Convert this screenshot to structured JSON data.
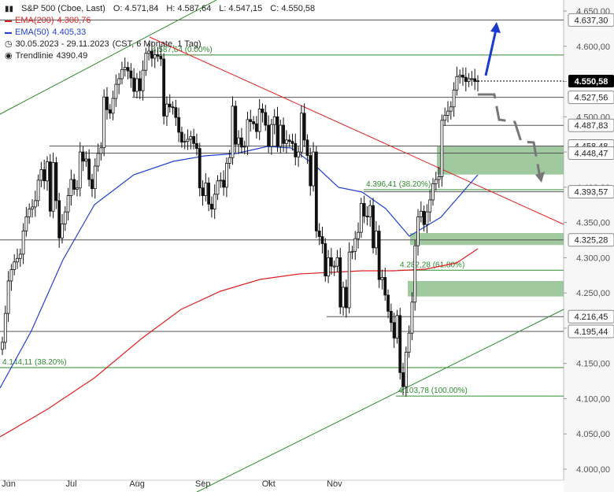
{
  "legend": {
    "title": "S&P 500 (Cboe, Last)",
    "open": "O: 4.571,84",
    "high": "H: 4.587,64",
    "low": "L: 4.547,15",
    "close": "C: 4.550,58",
    "ema200_label": "EMA(200)",
    "ema200_value": "4.300,76",
    "ema50_label": "EMA(50)",
    "ema50_value": "4.405,33",
    "period": "30.05.2023 - 29.11.2023",
    "period_info": "(CST, 6 Monate, 1 Tag)",
    "trend_label": "Trendlinie",
    "trend_value": "4390.49"
  },
  "colors": {
    "ema200": "#e02020",
    "ema50": "#2040d0",
    "trend": "#2e8b2e",
    "zone": "#8fbf8f",
    "candle": "#111111",
    "axis_bg_label": "#ffffff",
    "current_price_bg": "#000000",
    "arrow_up": "#1a3ad0",
    "arrow_down": "#777777"
  },
  "chart_data": {
    "type": "candlestick",
    "title": "S&P 500 (Cboe, Last)",
    "x_months": [
      "Jun",
      "Jul",
      "Aug",
      "Sep",
      "Okt",
      "Nov"
    ],
    "y_range": [
      3975,
      4665
    ],
    "y_ticks": [
      "4.650,00",
      "4.600,00",
      "4.550,00",
      "4.500,00",
      "4.450,00",
      "4.400,00",
      "4.350,00",
      "4.300,00",
      "4.250,00",
      "4.200,00",
      "4.150,00",
      "4.100,00",
      "4.050,00",
      "4.000,00"
    ],
    "close_series": [
      4180,
      4221,
      4267,
      4283,
      4294,
      4299,
      4305,
      4338,
      4358,
      4369,
      4372,
      4381,
      4410,
      4425,
      4409,
      4436,
      4366,
      4435,
      4381,
      4328,
      4348,
      4365,
      4388,
      4411,
      4397,
      4399,
      4450,
      4437,
      4440,
      4411,
      4398,
      4430,
      4448,
      4456,
      4528,
      4510,
      4505,
      4526,
      4546,
      4554,
      4567,
      4570,
      4565,
      4555,
      4536,
      4554,
      4537,
      4566,
      4590,
      4593,
      4583,
      4588,
      4586,
      4582,
      4501,
      4518,
      4514,
      4513,
      4499,
      4478,
      4464,
      4465,
      4468,
      4472,
      4462,
      4455,
      4399,
      4388,
      4406,
      4376,
      4369,
      4390,
      4409,
      4410,
      4400,
      4434,
      4442,
      4515,
      4461,
      4470,
      4457,
      4458,
      4496,
      4493,
      4490,
      4479,
      4511,
      4506,
      4488,
      4458,
      4489,
      4500,
      4458,
      4488,
      4462,
      4467,
      4465,
      4462,
      4443,
      4450,
      4505,
      4467,
      4445,
      4402,
      4450,
      4338,
      4330,
      4320,
      4274,
      4300,
      4288,
      4288,
      4300,
      4230,
      4258,
      4229,
      4308,
      4309,
      4327,
      4336,
      4377,
      4359,
      4358,
      4374,
      4314,
      4338,
      4269,
      4272,
      4247,
      4224,
      4208,
      4186,
      4218,
      4137,
      4117,
      4166,
      4193,
      4237,
      4317,
      4358,
      4366,
      4347,
      4365,
      4382,
      4405,
      4411,
      4415,
      4495,
      4502,
      4508,
      4514,
      4538,
      4557,
      4559,
      4556,
      4550,
      4554,
      4554,
      4550,
      4551
    ],
    "levels": [
      {
        "value": 4637.3,
        "label": "4.637,30"
      },
      {
        "value": 4587.64,
        "label": "4.587,64 (0.00%)"
      },
      {
        "value": 4527.56,
        "label": "4.527,56"
      },
      {
        "value": 4487.83,
        "label": "4.487,83"
      },
      {
        "value": 4458.48,
        "label": "4.458,48"
      },
      {
        "value": 4448.47,
        "label": "4.448,47"
      },
      {
        "value": 4396.41,
        "label": "4.396,41 (38.20%)"
      },
      {
        "value": 4393.57,
        "label": "4.393,57"
      },
      {
        "value": 4325.28,
        "label": "4.325,28"
      },
      {
        "value": 4282.28,
        "label": "4.282,28 (61.80%)"
      },
      {
        "value": 4216.45,
        "label": "4.216,45"
      },
      {
        "value": 4195.44,
        "label": "4.195,44"
      },
      {
        "value": 4144.11,
        "label": "4.144,11 (38.20%)"
      },
      {
        "value": 4103.78,
        "label": "4.103,78 (100.00%)"
      }
    ],
    "current_price": {
      "value": 4550.58,
      "label": "4.550,58"
    },
    "zones": [
      [
        4418,
        4458
      ],
      [
        4318,
        4335
      ],
      [
        4245,
        4267
      ]
    ],
    "ema200_label": "EMA(200)",
    "ema50_label": "EMA(50)",
    "trend_label": "Trendlinie"
  }
}
